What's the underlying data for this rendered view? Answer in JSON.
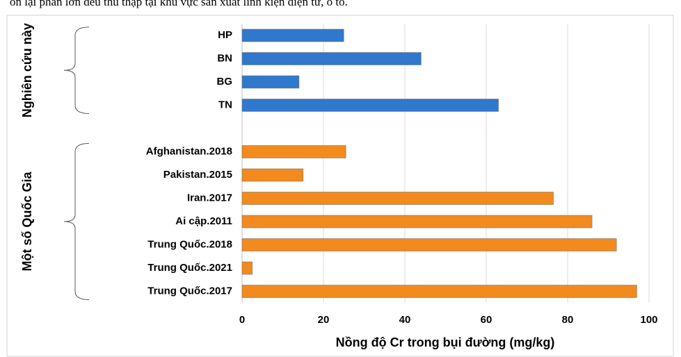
{
  "caption": "òn lại phần lớn đều thu thập tại khu vực sản xuất linh kiện điện tử, ô tô.",
  "chart_data": {
    "type": "bar",
    "orientation": "horizontal",
    "xlabel": "Nồng độ Cr trong bụi đường (mg/kg)",
    "xlim": [
      0,
      100
    ],
    "xticks": [
      0,
      20,
      40,
      60,
      80,
      100
    ],
    "grid": true,
    "groups": [
      {
        "name": "Nghiên cứu này",
        "color": "#2f78cc",
        "categories": [
          "HP",
          "BN",
          "BG",
          "TN"
        ],
        "values": [
          25,
          44,
          14,
          63
        ]
      },
      {
        "name": "Một số Quốc Gia",
        "color": "#f28a1e",
        "categories": [
          "Afghanistan.2018",
          "Pakistan.2015",
          "Iran.2017",
          "Ai cập.2011",
          "Trung Quốc.2018",
          "Trung Quốc.2021",
          "Trung Quốc.2017"
        ],
        "values": [
          25.5,
          15,
          76.5,
          86,
          92,
          2.5,
          97
        ]
      }
    ]
  }
}
